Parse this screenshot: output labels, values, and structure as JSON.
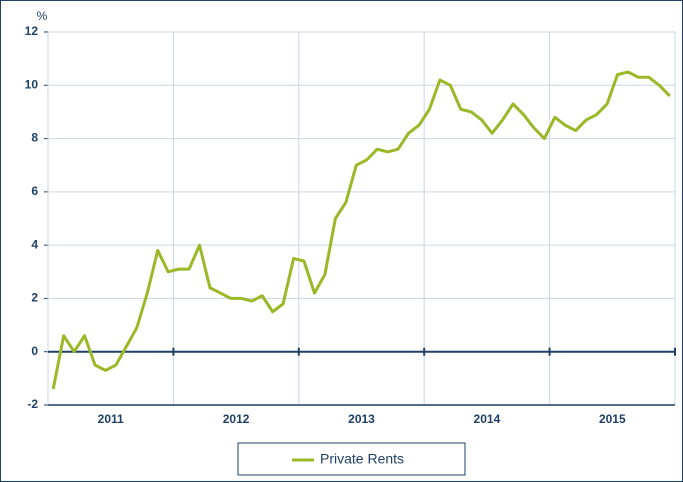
{
  "chart_data": {
    "type": "line",
    "y_label": "%",
    "years": [
      "2011",
      "2012",
      "2013",
      "2014",
      "2015"
    ],
    "series": [
      {
        "name": "Private Rents",
        "color": "#9ab828",
        "values": [
          -1.4,
          0.6,
          0,
          0.6,
          -0.5,
          -0.7,
          -0.5,
          0.2,
          0.9,
          2.2,
          3.8,
          3.0,
          3.1,
          3.1,
          4.0,
          2.4,
          2.2,
          2.0,
          2.0,
          1.9,
          2.1,
          1.5,
          1.8,
          3.5,
          3.4,
          2.2,
          2.9,
          5.0,
          5.6,
          7.0,
          7.2,
          7.6,
          7.5,
          7.6,
          8.2,
          8.5,
          9.1,
          10.2,
          10.0,
          9.1,
          9.0,
          8.7,
          8.2,
          8.7,
          9.3,
          8.9,
          8.4,
          8.0,
          8.8,
          8.5,
          8.3,
          8.7,
          8.9,
          9.3,
          10.4,
          10.5,
          10.3,
          10.3,
          10.0,
          9.6
        ]
      }
    ],
    "ylim": [
      -2,
      12
    ],
    "yticks": [
      -2,
      0,
      2,
      4,
      6,
      8,
      10,
      12
    ],
    "grid": true
  }
}
